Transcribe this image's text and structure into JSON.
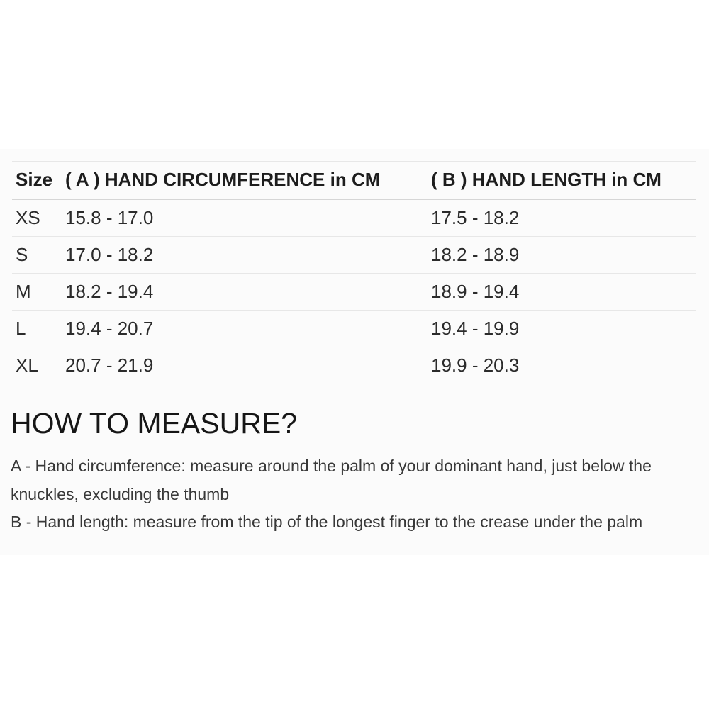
{
  "colors": {
    "page_background": "#ffffff",
    "section_background": "#fbfbfb",
    "heading_text": "#161616",
    "table_text": "#2b2b2b",
    "body_text": "#383838",
    "row_border": "#e7e7e7",
    "header_border": "#d6d6d6"
  },
  "table": {
    "headers": [
      "Size",
      "( A ) HAND CIRCUMFERENCE in CM",
      "( B ) HAND LENGTH in CM"
    ],
    "rows": [
      {
        "size": "XS",
        "circumference": "15.8 - 17.0",
        "length": "17.5 - 18.2"
      },
      {
        "size": "S",
        "circumference": "17.0 - 18.2",
        "length": "18.2 - 18.9"
      },
      {
        "size": "M",
        "circumference": "18.2 - 19.4",
        "length": "18.9 - 19.4"
      },
      {
        "size": "L",
        "circumference": "19.4 - 20.7",
        "length": "19.4 - 19.9"
      },
      {
        "size": "XL",
        "circumference": "20.7 - 21.9",
        "length": "19.9 - 20.3"
      }
    ]
  },
  "how_to_measure": {
    "heading": "HOW TO MEASURE?",
    "instructions": [
      "A - Hand circumference: measure around the palm of your dominant hand, just below the knuckles, excluding the thumb",
      "B - Hand length: measure from the tip of the longest finger to the crease under the palm"
    ]
  }
}
